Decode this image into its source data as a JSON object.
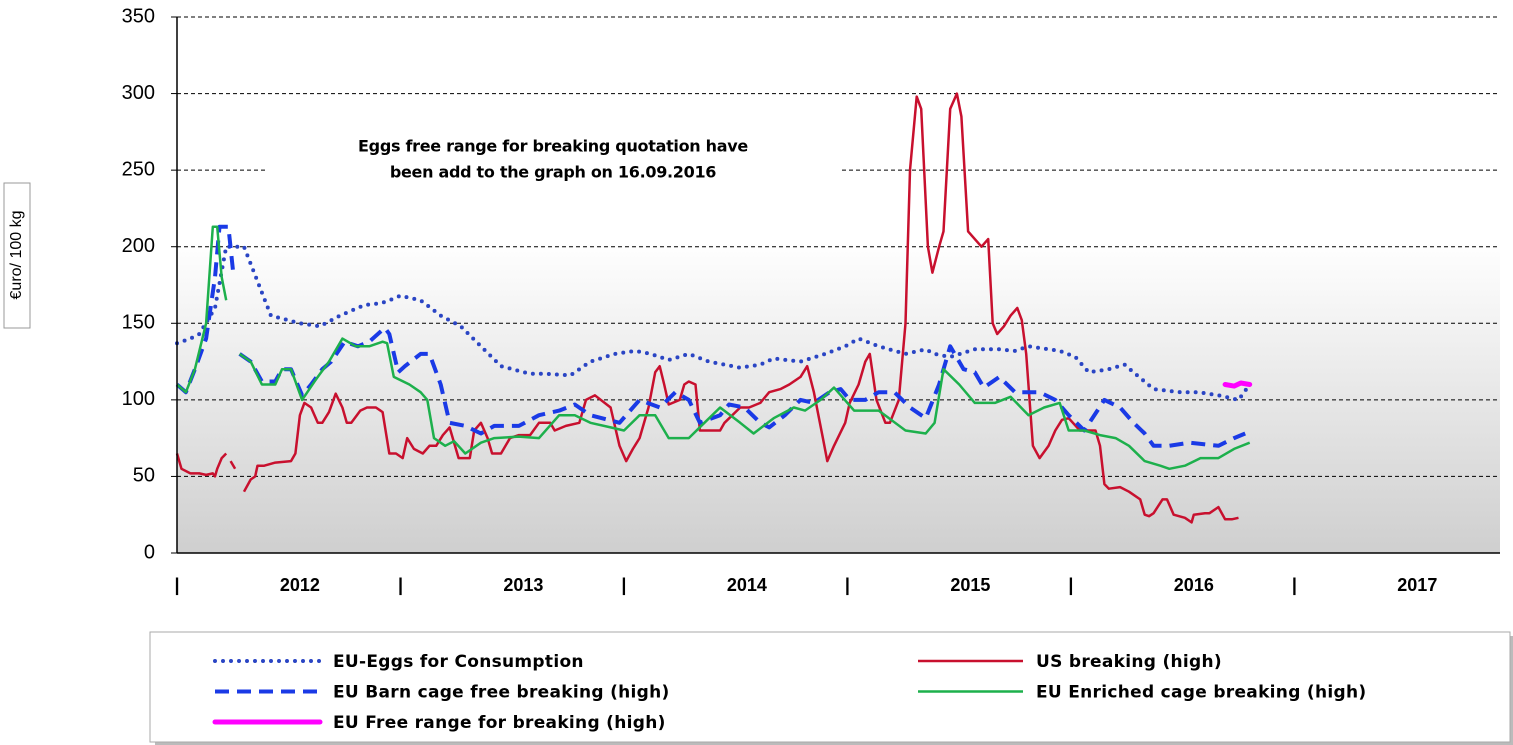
{
  "chart_data": {
    "type": "line",
    "y_label": "€uro/ 100 kg",
    "annotation": [
      "Eggs free range for breaking quotation  have",
      "been add to the graph on 16.09.2016"
    ],
    "xlim": [
      2012,
      2017.92
    ],
    "xticks": [
      {
        "value": 2012,
        "label": "|"
      },
      {
        "value": 2012.55,
        "label": "2012"
      },
      {
        "value": 2013,
        "label": "|"
      },
      {
        "value": 2013.55,
        "label": "2013"
      },
      {
        "value": 2014,
        "label": "|"
      },
      {
        "value": 2014.55,
        "label": "2014"
      },
      {
        "value": 2015,
        "label": "|"
      },
      {
        "value": 2015.55,
        "label": "2015"
      },
      {
        "value": 2016,
        "label": "|"
      },
      {
        "value": 2016.55,
        "label": "2016"
      },
      {
        "value": 2017,
        "label": "|"
      },
      {
        "value": 2017.55,
        "label": "2017"
      }
    ],
    "ylim": [
      0,
      350
    ],
    "yticks": [
      0,
      50,
      100,
      150,
      200,
      250,
      300,
      350
    ],
    "grid": true,
    "series": [
      {
        "name": "EU-Eggs for Consumption",
        "color": "#2a45c4",
        "style": "dotted",
        "x": [
          2012.0,
          2012.06,
          2012.1,
          2012.17,
          2012.22,
          2012.26,
          2012.3,
          2012.42,
          2012.55,
          2012.64,
          2012.73,
          2012.84,
          2012.91,
          2012.95,
          2013.0,
          2013.09,
          2013.18,
          2013.27,
          2013.36,
          2013.45,
          2013.58,
          2013.65,
          2013.76,
          2013.85,
          2013.96,
          2014.05,
          2014.12,
          2014.2,
          2014.29,
          2014.38,
          2014.52,
          2014.61,
          2014.67,
          2014.79,
          2014.9,
          2014.99,
          2015.05,
          2015.14,
          2015.26,
          2015.35,
          2015.39,
          2015.46,
          2015.57,
          2015.68,
          2015.75,
          2015.81,
          2015.95,
          2016.02,
          2016.08,
          2016.17,
          2016.24,
          2016.28,
          2016.37,
          2016.49,
          2016.57,
          2016.66,
          2016.75,
          2016.8
        ],
        "values": [
          137,
          140,
          143,
          160,
          200,
          200,
          200,
          155,
          150,
          148,
          155,
          162,
          163,
          165,
          168,
          165,
          155,
          148,
          135,
          122,
          117,
          117,
          116,
          125,
          130,
          132,
          130,
          126,
          130,
          125,
          121,
          123,
          127,
          125,
          130,
          135,
          140,
          135,
          130,
          133,
          130,
          128,
          133,
          133,
          132,
          135,
          132,
          128,
          118,
          120,
          123,
          118,
          107,
          105,
          105,
          103,
          100,
          110
        ]
      },
      {
        "name": "US breaking (high)",
        "color": "#c8102e",
        "style": "solid",
        "x": [
          2012.0,
          2012.02,
          2012.06,
          2012.1,
          2012.13,
          2012.16,
          2012.17,
          2012.18,
          2012.2,
          2012.22,
          2012.23,
          2012.24,
          2012.26,
          2012.28,
          2012.3,
          2012.33,
          2012.35,
          2012.36,
          2012.39,
          2012.44,
          2012.51,
          2012.53,
          2012.55,
          2012.57,
          2012.6,
          2012.63,
          2012.65,
          2012.68,
          2012.71,
          2012.74,
          2012.76,
          2012.78,
          2012.82,
          2012.85,
          2012.89,
          2012.92,
          2012.95,
          2012.98,
          2013.01,
          2013.03,
          2013.06,
          2013.1,
          2013.13,
          2013.16,
          2013.19,
          2013.22,
          2013.26,
          2013.31,
          2013.33,
          2013.36,
          2013.39,
          2013.41,
          2013.45,
          2013.49,
          2013.53,
          2013.58,
          2013.62,
          2013.67,
          2013.69,
          2013.74,
          2013.8,
          2013.83,
          2013.87,
          2013.94,
          2013.98,
          2014.01,
          2014.04,
          2014.07,
          2014.11,
          2014.14,
          2014.16,
          2014.18,
          2014.2,
          2014.25,
          2014.27,
          2014.29,
          2014.32,
          2014.34,
          2014.38,
          2014.43,
          2014.45,
          2014.52,
          2014.56,
          2014.61,
          2014.65,
          2014.7,
          2014.74,
          2014.79,
          2014.82,
          2014.85,
          2014.89,
          2014.91,
          2014.94,
          2014.99,
          2015.01,
          2015.05,
          2015.08,
          2015.1,
          2015.13,
          2015.17,
          2015.19,
          2015.23,
          2015.26,
          2015.28,
          2015.31,
          2015.33,
          2015.36,
          2015.38,
          2015.41,
          2015.43,
          2015.46,
          2015.49,
          2015.51,
          2015.54,
          2015.57,
          2015.6,
          2015.63,
          2015.65,
          2015.67,
          2015.7,
          2015.73,
          2015.76,
          2015.78,
          2015.8,
          2015.83,
          2015.86,
          2015.9,
          2015.93,
          2015.96,
          2015.99,
          2016.04,
          2016.08,
          2016.11,
          2016.13,
          2016.15,
          2016.17,
          2016.22,
          2016.26,
          2016.31,
          2016.33,
          2016.35,
          2016.37,
          2016.41,
          2016.43,
          2016.46,
          2016.51,
          2016.54,
          2016.55,
          2016.6,
          2016.62,
          2016.66,
          2016.69,
          2016.72,
          2016.75
        ],
        "values": [
          65,
          55,
          52,
          52,
          51,
          52,
          50,
          55,
          62,
          65,
          null,
          60,
          55,
          null,
          40,
          48,
          50,
          57,
          57,
          59,
          60,
          65,
          90,
          98,
          95,
          85,
          85,
          92,
          104,
          95,
          85,
          85,
          93,
          95,
          95,
          92,
          65,
          65,
          62,
          75,
          68,
          65,
          70,
          70,
          77,
          82,
          62,
          62,
          80,
          85,
          75,
          65,
          65,
          75,
          77,
          77,
          85,
          85,
          80,
          83,
          85,
          100,
          103,
          95,
          70,
          60,
          68,
          75,
          95,
          118,
          122,
          110,
          97,
          100,
          110,
          112,
          110,
          80,
          80,
          80,
          85,
          95,
          95,
          98,
          105,
          107,
          110,
          115,
          122,
          105,
          75,
          60,
          70,
          85,
          98,
          110,
          125,
          130,
          100,
          85,
          85,
          100,
          150,
          250,
          298,
          290,
          200,
          183,
          200,
          210,
          290,
          300,
          285,
          210,
          205,
          200,
          205,
          150,
          143,
          148,
          155,
          160,
          152,
          130,
          70,
          62,
          70,
          80,
          87,
          88,
          80,
          80,
          80,
          70,
          45,
          42,
          43,
          40,
          35,
          25,
          24,
          26,
          35,
          35,
          25,
          23,
          20,
          25,
          26,
          26,
          30,
          22,
          22,
          23
        ]
      },
      {
        "name": "EU Barn cage free breaking (high)",
        "color": "#1a3ae6",
        "style": "dashed",
        "x": [
          2012.0,
          2012.04,
          2012.08,
          2012.13,
          2012.17,
          2012.19,
          2012.23,
          2012.25,
          2012.26,
          2012.28,
          2012.33,
          2012.38,
          2012.44,
          2012.47,
          2012.51,
          2012.56,
          2012.6,
          2012.65,
          2012.69,
          2012.75,
          2012.81,
          2012.86,
          2012.93,
          2012.95,
          2012.99,
          2013.02,
          2013.09,
          2013.13,
          2013.18,
          2013.22,
          2013.29,
          2013.36,
          2013.42,
          2013.53,
          2013.62,
          2013.71,
          2013.78,
          2013.85,
          2013.98,
          2014.07,
          2014.16,
          2014.23,
          2014.29,
          2014.34,
          2014.43,
          2014.47,
          2014.54,
          2014.61,
          2014.65,
          2014.72,
          2014.79,
          2014.85,
          2014.92,
          2014.97,
          2015.01,
          2015.08,
          2015.14,
          2015.21,
          2015.28,
          2015.35,
          2015.41,
          2015.46,
          2015.52,
          2015.57,
          2015.61,
          2015.68,
          2015.75,
          2015.86,
          2015.93,
          2015.99,
          2016.06,
          2016.15,
          2016.22,
          2016.28,
          2016.33,
          2016.37,
          2016.44,
          2016.53,
          2016.66,
          2016.73,
          2016.78
        ],
        "values": [
          110,
          105,
          120,
          140,
          180,
          213,
          213,
          185,
          null,
          130,
          125,
          112,
          112,
          120,
          120,
          103,
          110,
          120,
          125,
          138,
          135,
          138,
          147,
          143,
          118,
          122,
          130,
          130,
          110,
          85,
          83,
          78,
          83,
          83,
          90,
          93,
          97,
          90,
          85,
          100,
          95,
          105,
          100,
          85,
          90,
          97,
          95,
          85,
          82,
          90,
          100,
          98,
          105,
          107,
          100,
          100,
          105,
          105,
          95,
          88,
          110,
          135,
          120,
          118,
          108,
          115,
          105,
          105,
          100,
          90,
          80,
          100,
          95,
          85,
          78,
          70,
          70,
          72,
          70,
          75,
          78
        ]
      },
      {
        "name": "EU Enriched cage breaking (high)",
        "color": "#1db04c",
        "style": "solid",
        "x": [
          2012.0,
          2012.04,
          2012.08,
          2012.13,
          2012.16,
          2012.18,
          2012.2,
          2012.22,
          2012.24,
          2012.28,
          2012.33,
          2012.38,
          2012.44,
          2012.47,
          2012.51,
          2012.56,
          2012.62,
          2012.68,
          2012.74,
          2012.8,
          2012.86,
          2012.92,
          2012.94,
          2012.97,
          2013.04,
          2013.09,
          2013.12,
          2013.15,
          2013.2,
          2013.24,
          2013.29,
          2013.36,
          2013.42,
          2013.53,
          2013.62,
          2013.71,
          2013.78,
          2013.85,
          2013.94,
          2014.0,
          2014.07,
          2014.14,
          2014.2,
          2014.29,
          2014.36,
          2014.43,
          2014.52,
          2014.58,
          2014.67,
          2014.76,
          2014.81,
          2014.88,
          2014.94,
          2015.03,
          2015.14,
          2015.26,
          2015.35,
          2015.39,
          2015.43,
          2015.5,
          2015.57,
          2015.66,
          2015.73,
          2015.81,
          2015.88,
          2015.95,
          2015.99,
          2016.06,
          2016.13,
          2016.2,
          2016.26,
          2016.33,
          2016.4,
          2016.44,
          2016.51,
          2016.58,
          2016.66,
          2016.73,
          2016.8
        ],
        "values": [
          110,
          105,
          120,
          150,
          213,
          213,
          180,
          165,
          null,
          130,
          125,
          110,
          110,
          120,
          120,
          100,
          113,
          125,
          140,
          135,
          135,
          138,
          137,
          115,
          110,
          105,
          100,
          75,
          70,
          73,
          65,
          72,
          75,
          76,
          75,
          90,
          90,
          85,
          82,
          80,
          90,
          90,
          75,
          75,
          85,
          95,
          85,
          78,
          88,
          95,
          93,
          100,
          108,
          93,
          93,
          80,
          78,
          85,
          120,
          110,
          98,
          98,
          102,
          90,
          95,
          98,
          80,
          80,
          77,
          75,
          70,
          60,
          57,
          55,
          57,
          62,
          62,
          68,
          72
        ]
      },
      {
        "name": "EU Free range for breaking (high)",
        "color": "#ff00ff",
        "style": "thick",
        "x": [
          2016.69,
          2016.73,
          2016.76,
          2016.8
        ],
        "values": [
          110,
          109,
          111,
          110
        ]
      }
    ]
  }
}
